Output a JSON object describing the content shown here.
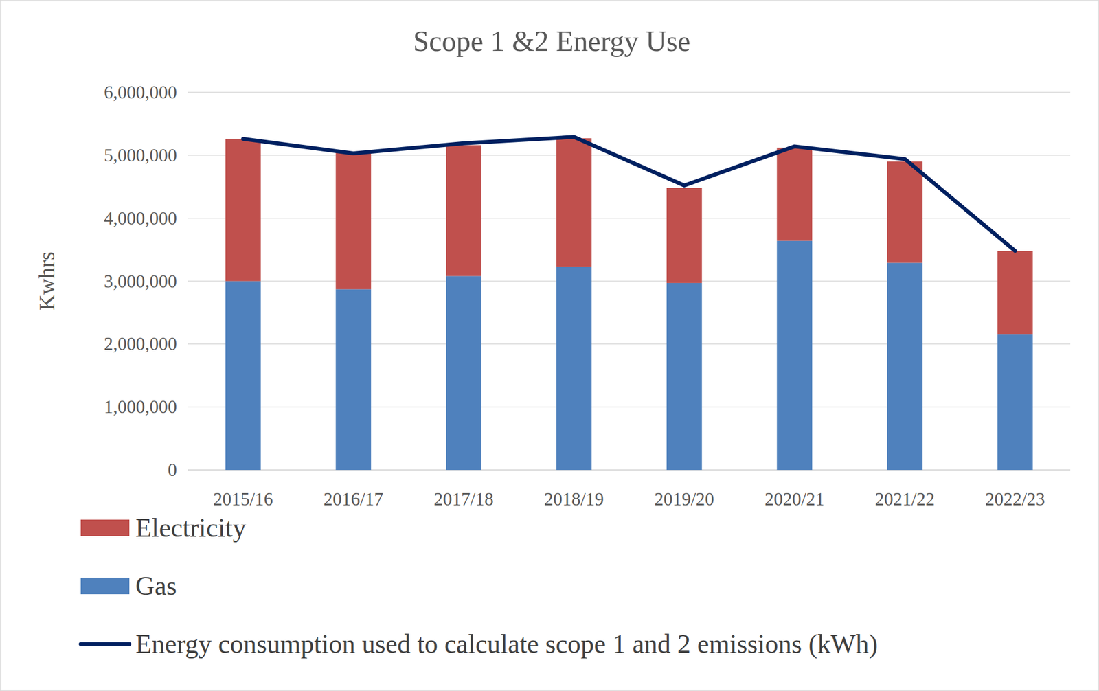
{
  "chart_data": {
    "type": "bar",
    "title": "Scope 1 &2 Energy Use",
    "y_label": "Kwhrs",
    "stacked": true,
    "grid": true,
    "legend": "bottom",
    "categories": [
      "2015/16",
      "2016/17",
      "2017/18",
      "2018/19",
      "2019/20",
      "2020/21",
      "2021/22",
      "2022/23"
    ],
    "series": [
      {
        "name": "Electricity",
        "type": "bar",
        "color": "#c0504d",
        "values": [
          2260000,
          2180000,
          2080000,
          2040000,
          1510000,
          1480000,
          1610000,
          1320000
        ]
      },
      {
        "name": "Gas",
        "type": "bar",
        "color": "#4f81bd",
        "values": [
          3000000,
          2870000,
          3080000,
          3230000,
          2970000,
          3640000,
          3290000,
          2160000
        ]
      },
      {
        "name": "Energy consumption used to calculate scope 1 and 2 emissions (kWh)",
        "type": "line",
        "color": "#002060",
        "values": [
          5260000,
          5030000,
          5190000,
          5290000,
          4520000,
          5140000,
          4940000,
          3480000
        ]
      }
    ],
    "ylim": [
      0,
      6000000
    ],
    "yticks": [
      0,
      {
        "value": 1000000,
        "label": "1,000,000"
      },
      {
        "value": 2000000,
        "label": "2,000,000"
      },
      {
        "value": 3000000,
        "label": "3,000,000"
      },
      {
        "value": 4000000,
        "label": "4,000,000"
      },
      {
        "value": 5000000,
        "label": "5,000,000"
      },
      {
        "value": 6000000,
        "label": "6,000,000"
      }
    ]
  }
}
